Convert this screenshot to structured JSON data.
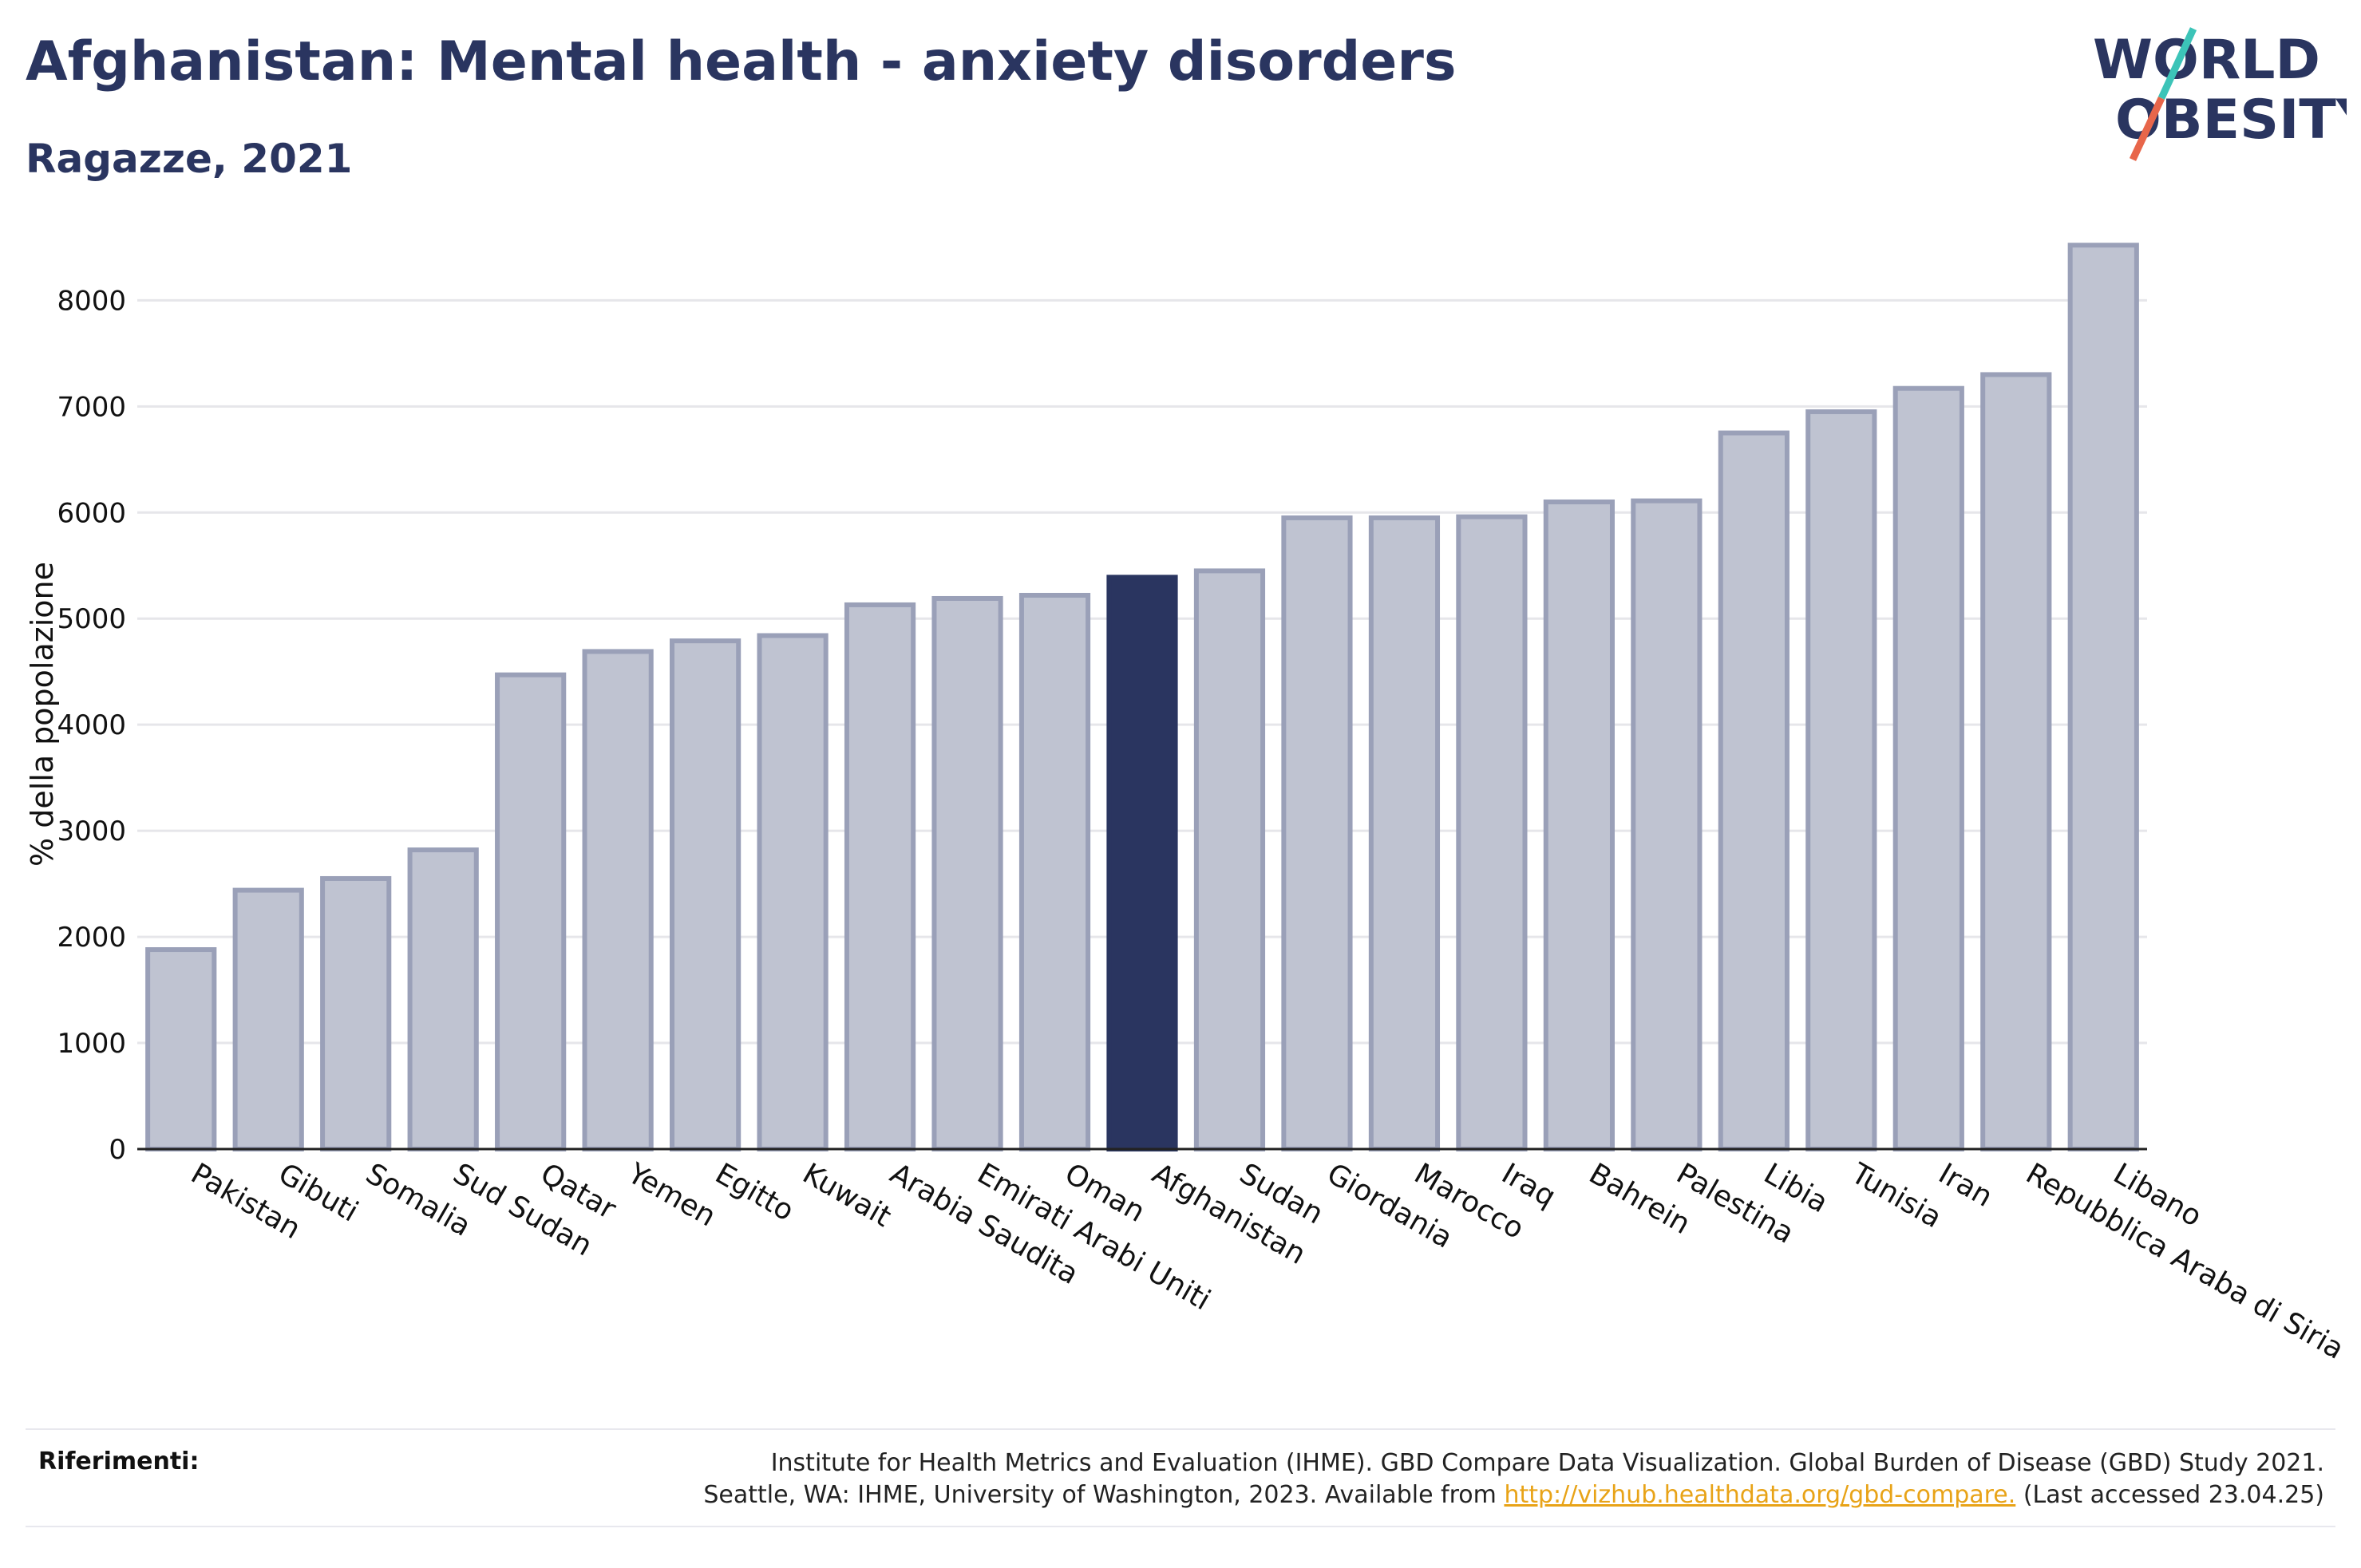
{
  "header": {
    "title": "Afghanistan: Mental health - anxiety disorders",
    "subtitle": "Ragazze, 2021"
  },
  "logo": {
    "line1": "WORLD",
    "line2": "OBESITY",
    "colors": {
      "text": "#2a3560",
      "slash_top": "#3cc4b8",
      "slash_bottom": "#e8664a"
    }
  },
  "chart_data": {
    "type": "bar",
    "ylabel": "% della popolazione",
    "xlabel": "",
    "ylim": [
      0,
      8800
    ],
    "yticks": [
      0,
      1000,
      2000,
      3000,
      4000,
      5000,
      6000,
      7000,
      8000
    ],
    "grid": true,
    "highlight": "Afghanistan",
    "colors": {
      "bar": "#bfc3d1",
      "bar_edge": "#9aa0b8",
      "highlight": "#2a3560"
    },
    "categories": [
      "Pakistan",
      "Gibuti",
      "Somalia",
      "Sud Sudan",
      "Qatar",
      "Yemen",
      "Egitto",
      "Kuwait",
      "Arabia Saudita",
      "Emirati Arabi Uniti",
      "Oman",
      "Afghanistan",
      "Sudan",
      "Giordania",
      "Marocco",
      "Iraq",
      "Bahrein",
      "Palestina",
      "Libia",
      "Tunisia",
      "Iran",
      "Repubblica Araba di Siria",
      "Libano"
    ],
    "values": [
      1880,
      2440,
      2550,
      2820,
      4470,
      4690,
      4790,
      4840,
      5130,
      5190,
      5220,
      5390,
      5450,
      5950,
      5950,
      5960,
      6100,
      6110,
      6750,
      6950,
      7170,
      7300,
      8520
    ]
  },
  "references": {
    "label": "Riferimenti:",
    "line1": "Institute for Health Metrics and Evaluation (IHME). GBD Compare Data Visualization. Global Burden of Disease (GBD) Study 2021.",
    "line2_prefix": "Seattle, WA: IHME, University of Washington, 2023. Available from",
    "link": "http://vizhub.healthdata.org/gbd-compare.",
    "line2_suffix": "(Last accessed 23.04.25)"
  }
}
